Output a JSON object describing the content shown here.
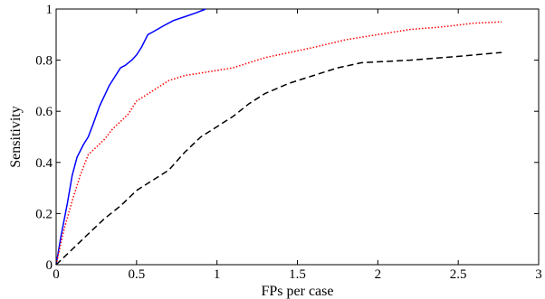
{
  "chart_data": {
    "type": "line",
    "title": "",
    "xlabel": "FPs per case",
    "ylabel": "Sensitivity",
    "xlim": [
      0,
      3
    ],
    "ylim": [
      0,
      1
    ],
    "xticks": [
      0,
      0.5,
      1,
      1.5,
      2,
      2.5,
      3
    ],
    "yticks": [
      0,
      0.2,
      0.4,
      0.6,
      0.8,
      1
    ],
    "xtick_labels": [
      "0",
      "0.5",
      "1",
      "1.5",
      "2",
      "2.5",
      "3"
    ],
    "ytick_labels": [
      "0",
      "0.2",
      "0.4",
      "0.6",
      "0.8",
      "1"
    ],
    "grid": false,
    "legend": "none",
    "series": [
      {
        "color": "#0000ff",
        "style": "solid",
        "x": [
          0,
          0.03,
          0.07,
          0.1,
          0.13,
          0.17,
          0.2,
          0.23,
          0.27,
          0.3,
          0.33,
          0.37,
          0.4,
          0.43,
          0.47,
          0.5,
          0.53,
          0.57,
          0.6,
          0.67,
          0.73,
          0.8,
          0.87,
          0.93
        ],
        "y": [
          0,
          0.11,
          0.24,
          0.35,
          0.42,
          0.47,
          0.5,
          0.55,
          0.62,
          0.66,
          0.7,
          0.74,
          0.77,
          0.78,
          0.8,
          0.82,
          0.85,
          0.9,
          0.91,
          0.935,
          0.955,
          0.97,
          0.985,
          1.0
        ]
      },
      {
        "color": "#ff0000",
        "style": "dotted",
        "x": [
          0,
          0.05,
          0.1,
          0.15,
          0.2,
          0.25,
          0.3,
          0.35,
          0.4,
          0.45,
          0.5,
          0.6,
          0.7,
          0.8,
          0.9,
          1.0,
          1.1,
          1.2,
          1.3,
          1.45,
          1.6,
          1.8,
          2.0,
          2.2,
          2.4,
          2.6,
          2.77
        ],
        "y": [
          0,
          0.14,
          0.25,
          0.35,
          0.43,
          0.46,
          0.49,
          0.53,
          0.56,
          0.59,
          0.64,
          0.68,
          0.72,
          0.74,
          0.75,
          0.76,
          0.77,
          0.79,
          0.81,
          0.83,
          0.85,
          0.88,
          0.9,
          0.92,
          0.93,
          0.945,
          0.95
        ]
      },
      {
        "color": "#000000",
        "style": "dashed",
        "x": [
          0,
          0.1,
          0.2,
          0.3,
          0.4,
          0.5,
          0.6,
          0.7,
          0.8,
          0.9,
          1.0,
          1.1,
          1.2,
          1.3,
          1.45,
          1.6,
          1.75,
          1.9,
          2.2,
          2.5,
          2.77
        ],
        "y": [
          0,
          0.06,
          0.12,
          0.18,
          0.23,
          0.29,
          0.33,
          0.37,
          0.44,
          0.5,
          0.54,
          0.58,
          0.63,
          0.67,
          0.71,
          0.74,
          0.77,
          0.79,
          0.8,
          0.815,
          0.83
        ]
      }
    ]
  }
}
